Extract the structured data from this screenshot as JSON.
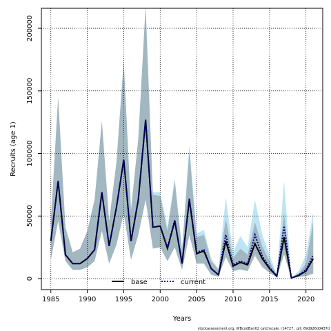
{
  "chart_data": {
    "type": "line",
    "xlabel": "Years",
    "ylabel": "Recruits (age 1)",
    "footnote": "stockassessment.org, WBcodBan02 catchscale, r14727 , git: 69d926d0437d",
    "x": [
      1985,
      1986,
      1987,
      1988,
      1989,
      1990,
      1991,
      1992,
      1993,
      1994,
      1995,
      1996,
      1997,
      1998,
      1999,
      2000,
      2001,
      2002,
      2003,
      2004,
      2005,
      2006,
      2007,
      2008,
      2009,
      2010,
      2011,
      2012,
      2013,
      2014,
      2015,
      2016,
      2017,
      2018,
      2019,
      2020,
      2021
    ],
    "xlim": [
      1983.7,
      2022.3
    ],
    "xticks": [
      1985,
      1990,
      1995,
      2000,
      2005,
      2010,
      2015,
      2020
    ],
    "ylim": [
      -8800,
      216000
    ],
    "yticks": [
      0,
      50000,
      100000,
      150000,
      200000
    ],
    "grid": true,
    "legend": "bottom",
    "series": [
      {
        "name": "base",
        "color": "#000000",
        "linestyle": "solid",
        "band_color": "#808080",
        "values": [
          30000,
          78000,
          19000,
          12000,
          12000,
          16000,
          23000,
          69000,
          26000,
          57000,
          95000,
          30000,
          63000,
          127000,
          41000,
          42000,
          24000,
          46000,
          12000,
          63000,
          20000,
          22000,
          8000,
          3000,
          30000,
          10000,
          13000,
          11000,
          28000,
          16000,
          8000,
          2000,
          33000,
          500,
          2500,
          6000,
          16000
        ],
        "lower": [
          15000,
          46000,
          14000,
          7000,
          7000,
          9000,
          14000,
          38000,
          12000,
          27000,
          52000,
          15000,
          35000,
          63000,
          24000,
          25000,
          14000,
          25000,
          7000,
          35000,
          12000,
          12000,
          3000,
          1500,
          17000,
          6000,
          7000,
          6000,
          18000,
          9000,
          4500,
          1000,
          19000,
          200,
          1200,
          2000,
          4000
        ],
        "upper": [
          46000,
          145000,
          41000,
          21000,
          24000,
          38000,
          63000,
          126000,
          46000,
          93000,
          174000,
          55000,
          112000,
          218000,
          67000,
          66000,
          38000,
          78000,
          22000,
          102000,
          33000,
          35000,
          14000,
          7000,
          48000,
          16000,
          24000,
          19000,
          45000,
          26000,
          14000,
          2500,
          52000,
          800,
          4000,
          12000,
          45000
        ]
      },
      {
        "name": "current",
        "color": "#00008b",
        "linestyle": "dotted",
        "band_color": "#87ceeb",
        "values": [
          30000,
          78000,
          19000,
          12000,
          12000,
          16000,
          23000,
          69000,
          26000,
          57000,
          95000,
          30000,
          63000,
          127000,
          41000,
          42000,
          25000,
          47000,
          12000,
          64000,
          21000,
          23000,
          8000,
          3000,
          35000,
          11000,
          14000,
          12000,
          35000,
          18000,
          9000,
          2000,
          42000,
          500,
          3000,
          7000,
          19000
        ],
        "lower": [
          15000,
          46000,
          14000,
          7000,
          7000,
          9000,
          14000,
          38000,
          12000,
          27000,
          52000,
          15000,
          35000,
          63000,
          24000,
          25000,
          14000,
          25000,
          7000,
          35000,
          12000,
          12000,
          3000,
          1500,
          18000,
          6000,
          8000,
          6000,
          20000,
          10000,
          5000,
          1000,
          20000,
          200,
          1500,
          2000,
          4000
        ],
        "upper": [
          46000,
          145000,
          41000,
          21000,
          24000,
          38000,
          63000,
          126000,
          46000,
          93000,
          174000,
          55000,
          112000,
          218000,
          69000,
          69000,
          41000,
          80000,
          24000,
          107000,
          36000,
          39000,
          16000,
          8000,
          65000,
          21000,
          34000,
          25000,
          63000,
          35000,
          19000,
          3000,
          78000,
          1000,
          6000,
          19000,
          53000
        ]
      }
    ]
  }
}
